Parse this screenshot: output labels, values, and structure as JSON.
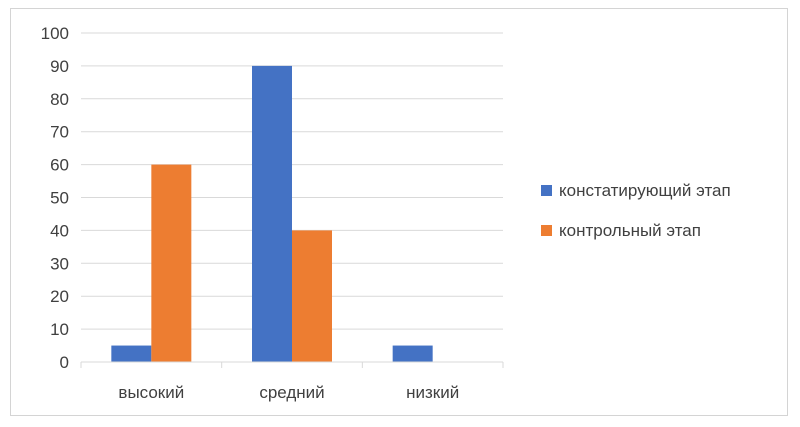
{
  "chart_data": {
    "type": "bar",
    "title": "",
    "xlabel": "",
    "ylabel": "",
    "categories": [
      "высокий",
      "средний",
      "низкий"
    ],
    "series": [
      {
        "name": "констатирующий этап",
        "color": "#4472C4",
        "values": [
          5,
          90,
          5
        ]
      },
      {
        "name": "контрольный этап",
        "color": "#ED7D31",
        "values": [
          60,
          40,
          0
        ]
      }
    ],
    "ylim": [
      0,
      100
    ],
    "yticks": [
      "0",
      "10",
      "20",
      "30",
      "40",
      "50",
      "60",
      "70",
      "80",
      "90",
      "100"
    ],
    "grid": true,
    "gridline_color": "#d9d9d9",
    "legend_position": "right"
  }
}
